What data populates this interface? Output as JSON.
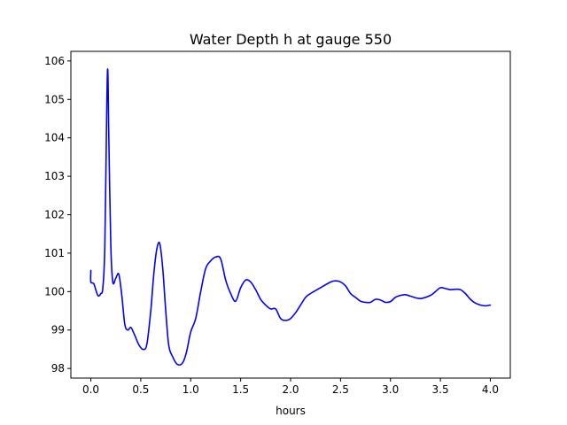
{
  "chart_data": {
    "type": "line",
    "title": "Water Depth h at gauge 550",
    "xlabel": "hours",
    "ylabel": "",
    "xlim": [
      -0.2,
      4.2
    ],
    "ylim": [
      97.75,
      106.25
    ],
    "xticks": [
      0.0,
      0.5,
      1.0,
      1.5,
      2.0,
      2.5,
      3.0,
      3.5,
      4.0
    ],
    "xtick_labels": [
      "0.0",
      "0.5",
      "1.0",
      "1.5",
      "2.0",
      "2.5",
      "3.0",
      "3.5",
      "4.0"
    ],
    "yticks": [
      98,
      99,
      100,
      101,
      102,
      103,
      104,
      105,
      106
    ],
    "ytick_labels": [
      "98",
      "99",
      "100",
      "101",
      "102",
      "103",
      "104",
      "105",
      "106"
    ],
    "grid": false,
    "legend": false,
    "series": [
      {
        "color": "#0000ff",
        "x": [
          0.0,
          0.0,
          0.03,
          0.07,
          0.1,
          0.12,
          0.14,
          0.16,
          0.17,
          0.18,
          0.2,
          0.22,
          0.25,
          0.28,
          0.31,
          0.34,
          0.37,
          0.4,
          0.43,
          0.45,
          0.48,
          0.52,
          0.56,
          0.6,
          0.63,
          0.66,
          0.69,
          0.72,
          0.75,
          0.78,
          0.82,
          0.86,
          0.9,
          0.93,
          0.96,
          1.0,
          1.05,
          1.1,
          1.15,
          1.2,
          1.25,
          1.3,
          1.35,
          1.4,
          1.45,
          1.5,
          1.55,
          1.6,
          1.65,
          1.7,
          1.75,
          1.8,
          1.85,
          1.9,
          1.95,
          2.0,
          2.05,
          2.1,
          2.15,
          2.2,
          2.3,
          2.4,
          2.45,
          2.5,
          2.55,
          2.6,
          2.65,
          2.7,
          2.75,
          2.8,
          2.85,
          2.9,
          2.95,
          3.0,
          3.05,
          3.1,
          3.15,
          3.2,
          3.3,
          3.4,
          3.45,
          3.5,
          3.55,
          3.6,
          3.65,
          3.7,
          3.75,
          3.8,
          3.85,
          3.9,
          3.95,
          4.0
        ],
        "y": [
          100.55,
          100.25,
          100.2,
          99.9,
          99.95,
          100.1,
          101.2,
          104.9,
          105.75,
          104.0,
          101.2,
          100.25,
          100.35,
          100.45,
          99.9,
          99.15,
          99.0,
          99.07,
          98.92,
          98.8,
          98.62,
          98.5,
          98.62,
          99.5,
          100.45,
          101.1,
          101.25,
          100.6,
          99.5,
          98.6,
          98.3,
          98.12,
          98.1,
          98.2,
          98.45,
          98.95,
          99.3,
          100.0,
          100.6,
          100.8,
          100.9,
          100.85,
          100.3,
          99.95,
          99.75,
          100.1,
          100.3,
          100.25,
          100.05,
          99.8,
          99.65,
          99.55,
          99.55,
          99.3,
          99.25,
          99.3,
          99.45,
          99.65,
          99.85,
          99.95,
          100.1,
          100.25,
          100.28,
          100.25,
          100.15,
          99.95,
          99.85,
          99.75,
          99.72,
          99.72,
          99.8,
          99.78,
          99.72,
          99.74,
          99.85,
          99.9,
          99.92,
          99.88,
          99.82,
          99.9,
          100.0,
          100.1,
          100.08,
          100.05,
          100.06,
          100.05,
          99.95,
          99.8,
          99.7,
          99.65,
          99.63,
          99.65
        ]
      }
    ]
  }
}
